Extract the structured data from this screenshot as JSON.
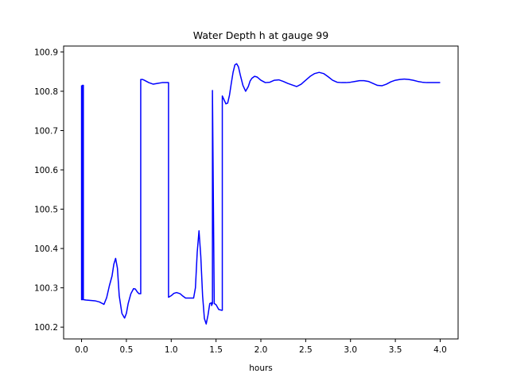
{
  "chart_data": {
    "type": "line",
    "title": "Water Depth h at gauge 99",
    "xlabel": "hours",
    "ylabel": "",
    "xlim": [
      -0.2,
      4.2
    ],
    "ylim": [
      100.17,
      100.915
    ],
    "xticks": [
      0.0,
      0.5,
      1.0,
      1.5,
      2.0,
      2.5,
      3.0,
      3.5,
      4.0
    ],
    "xtick_labels": [
      "0.0",
      "0.5",
      "1.0",
      "1.5",
      "2.0",
      "2.5",
      "3.0",
      "3.5",
      "4.0"
    ],
    "yticks": [
      100.2,
      100.3,
      100.4,
      100.5,
      100.6,
      100.7,
      100.8,
      100.9
    ],
    "ytick_labels": [
      "100.2",
      "100.3",
      "100.4",
      "100.5",
      "100.6",
      "100.7",
      "100.8",
      "100.9"
    ],
    "grid": false,
    "line_color": "#0000ff",
    "series": [
      {
        "name": "",
        "x": [
          0.0,
          0.0,
          0.01,
          0.01,
          0.02,
          0.02,
          0.05,
          0.1,
          0.15,
          0.2,
          0.25,
          0.28,
          0.31,
          0.34,
          0.36,
          0.38,
          0.4,
          0.42,
          0.45,
          0.48,
          0.5,
          0.52,
          0.55,
          0.58,
          0.6,
          0.62,
          0.64,
          0.66,
          0.66,
          0.68,
          0.7,
          0.75,
          0.8,
          0.85,
          0.9,
          0.96,
          0.97,
          0.97,
          1.0,
          1.03,
          1.06,
          1.1,
          1.13,
          1.16,
          1.19,
          1.22,
          1.25,
          1.27,
          1.29,
          1.31,
          1.33,
          1.35,
          1.37,
          1.39,
          1.41,
          1.43,
          1.45,
          1.45,
          1.46,
          1.46,
          1.48,
          1.5,
          1.53,
          1.56,
          1.57,
          1.57,
          1.59,
          1.61,
          1.63,
          1.65,
          1.67,
          1.69,
          1.71,
          1.73,
          1.75,
          1.77,
          1.8,
          1.83,
          1.86,
          1.88,
          1.9,
          1.93,
          1.96,
          2.0,
          2.05,
          2.1,
          2.15,
          2.2,
          2.25,
          2.3,
          2.35,
          2.4,
          2.45,
          2.5,
          2.55,
          2.6,
          2.65,
          2.7,
          2.75,
          2.8,
          2.85,
          2.9,
          2.95,
          3.0,
          3.05,
          3.1,
          3.15,
          3.2,
          3.25,
          3.3,
          3.35,
          3.4,
          3.45,
          3.5,
          3.55,
          3.6,
          3.65,
          3.7,
          3.75,
          3.8,
          3.85,
          3.9,
          3.95,
          4.0
        ],
        "y": [
          100.815,
          100.27,
          100.27,
          100.815,
          100.815,
          100.27,
          100.269,
          100.268,
          100.267,
          100.264,
          100.258,
          100.275,
          100.305,
          100.33,
          100.36,
          100.375,
          100.35,
          100.28,
          100.235,
          100.223,
          100.235,
          100.26,
          100.285,
          100.298,
          100.297,
          100.29,
          100.285,
          100.285,
          100.83,
          100.83,
          100.828,
          100.822,
          100.818,
          100.82,
          100.822,
          100.822,
          100.822,
          100.276,
          100.28,
          100.286,
          100.288,
          100.285,
          100.279,
          100.274,
          100.274,
          100.274,
          100.274,
          100.3,
          100.39,
          100.445,
          100.38,
          100.28,
          100.222,
          100.208,
          100.23,
          100.26,
          100.262,
          100.255,
          100.26,
          100.802,
          100.26,
          100.257,
          100.245,
          100.243,
          100.243,
          100.788,
          100.778,
          100.768,
          100.77,
          100.79,
          100.82,
          100.848,
          100.867,
          100.87,
          100.862,
          100.842,
          100.815,
          100.8,
          100.812,
          100.826,
          100.833,
          100.838,
          100.836,
          100.828,
          100.822,
          100.823,
          100.828,
          100.829,
          100.825,
          100.82,
          100.816,
          100.812,
          100.818,
          100.828,
          100.838,
          100.845,
          100.848,
          100.845,
          100.837,
          100.828,
          100.823,
          100.822,
          100.822,
          100.823,
          100.825,
          100.827,
          100.827,
          100.825,
          100.82,
          100.815,
          100.814,
          100.818,
          100.824,
          100.828,
          100.83,
          100.831,
          100.83,
          100.828,
          100.825,
          100.823,
          100.822,
          100.822,
          100.822,
          100.822
        ]
      }
    ]
  }
}
